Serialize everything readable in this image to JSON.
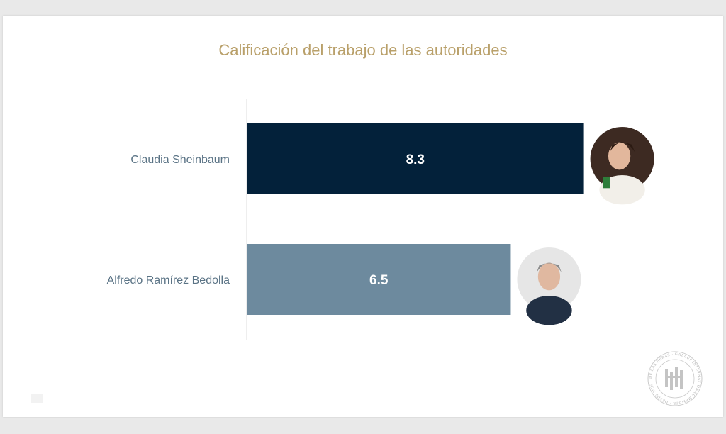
{
  "chart_data": {
    "type": "bar",
    "orientation": "horizontal",
    "title": "Calificación del trabajo de las autoridades",
    "categories": [
      "Claudia Sheinbaum",
      "Alfredo Ramírez Bedolla"
    ],
    "values": [
      8.3,
      6.5
    ],
    "value_labels": [
      "8.3",
      "6.5"
    ],
    "bar_colors": [
      "#03213a",
      "#6d8a9e"
    ],
    "xlim": [
      0,
      10
    ],
    "grid": false,
    "legend": "none"
  },
  "colors": {
    "title": "#b9a06a",
    "category_label": "#5a7385",
    "value_label": "#ffffff",
    "axis_line": "#dddddd"
  },
  "icons": {
    "photo_1": "woman-portrait-photo",
    "photo_2": "man-portrait-photo",
    "logo": "gallup-seal-logo"
  },
  "logo": {
    "ring_text": "DE LAS HERAS · GALLUP INTERNATIONAL MEMBER · DESDE 1995"
  }
}
